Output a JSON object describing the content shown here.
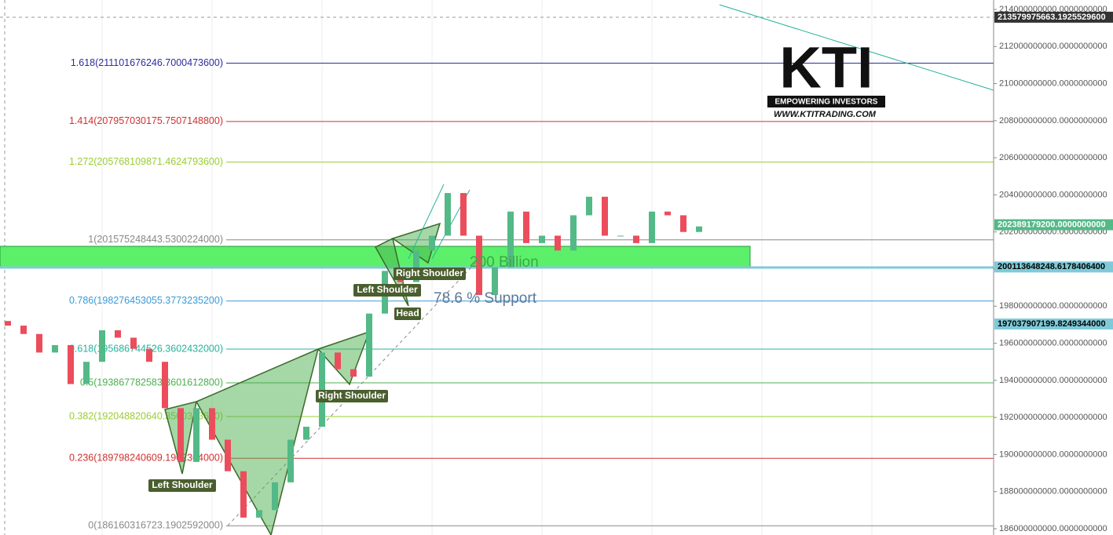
{
  "chart_data": {
    "type": "candlestick",
    "open": [
      197200000000.0,
      196950000000.0,
      196500000000.0,
      195500000000.0,
      195900000000.0,
      193800000000.0,
      195000000000.0,
      196700000000.0,
      196300000000.0,
      195700000000.0,
      195000000000.0,
      192500000000.0,
      189600000000.0,
      192500000000.0,
      190800000000.0,
      189100000000.0,
      186600000000.0,
      187000000000.0,
      188500000000.0,
      190800000000.0,
      191500000000.0,
      195500000000.0,
      194600000000.0,
      194200000000.0,
      197600000000.0,
      199900000000.0,
      199300000000.0,
      201000000000.0,
      201800000000.0,
      204100000000.0,
      201800000000.0,
      198600000000.0,
      200100000000.0,
      203100000000.0,
      201400000000.0,
      201800000000.0,
      201000000000.0,
      202900000000.0,
      203900000000.0,
      201800000000.0,
      201800000000.0,
      201400000000.0,
      203100000000.0,
      202900000000.0,
      202000000000.0
    ],
    "close": [
      196950000000.0,
      196500000000.0,
      195500000000.0,
      195900000000.0,
      193800000000.0,
      195000000000.0,
      196700000000.0,
      196300000000.0,
      195700000000.0,
      195000000000.0,
      192500000000.0,
      189600000000.0,
      192500000000.0,
      190800000000.0,
      189100000000.0,
      186600000000.0,
      187000000000.0,
      188500000000.0,
      190800000000.0,
      191500000000.0,
      195500000000.0,
      194600000000.0,
      194200000000.0,
      197600000000.0,
      199900000000.0,
      199300000000.0,
      201000000000.0,
      201800000000.0,
      204100000000.0,
      201800000000.0,
      198600000000.0,
      200100000000.0,
      203100000000.0,
      201400000000.0,
      201800000000.0,
      201000000000.0,
      202900000000.0,
      203900000000.0,
      201800000000.0,
      201800000000.0,
      201400000000.0,
      203100000000.0,
      202900000000.0,
      202000000000.0,
      202300000000.0
    ],
    "up_color": "#53b987",
    "down_color": "#eb4d5c",
    "ylim": [
      186000000000.0,
      214000000000.0
    ],
    "yticks": [
      {
        "value": 186000000000.0,
        "label": "186000000000.0000000000"
      },
      {
        "value": 188000000000.0,
        "label": "188000000000.0000000000"
      },
      {
        "value": 190000000000.0,
        "label": "190000000000.0000000000"
      },
      {
        "value": 192000000000.0,
        "label": "192000000000.0000000000"
      },
      {
        "value": 194000000000.0,
        "label": "194000000000.0000000000"
      },
      {
        "value": 196000000000.0,
        "label": "196000000000.0000000000"
      },
      {
        "value": 198000000000.0,
        "label": "198000000000.0000000000"
      },
      {
        "value": 200000000000.0,
        "label": "200000000000.0000000000"
      },
      {
        "value": 202000000000.0,
        "label": "202000000000.0000000000"
      },
      {
        "value": 204000000000.0,
        "label": "204000000000.0000000000"
      },
      {
        "value": 206000000000.0,
        "label": "206000000000.0000000000"
      },
      {
        "value": 208000000000.0,
        "label": "208000000000.0000000000"
      },
      {
        "value": 210000000000.0,
        "label": "210000000000.0000000000"
      },
      {
        "value": 212000000000.0,
        "label": "212000000000.0000000000"
      },
      {
        "value": 214000000000.0,
        "label": "214000000000.0000000000"
      }
    ],
    "fib_levels": [
      {
        "value": 211101676246.70004,
        "label": "1.618(211101676246.7000473600)",
        "color": "#2c2ca0"
      },
      {
        "value": 207957030175.75073,
        "label": "1.414(207957030175.7507148800)",
        "color": "#d03030"
      },
      {
        "value": 205768109871.4625,
        "label": "1.272(205768109871.4624793600)",
        "color": "#9acd32"
      },
      {
        "value": 201575248443.53003,
        "label": "1(201575248443.5300224000)",
        "color": "#888888"
      },
      {
        "value": 198276453055.37732,
        "label": "0.786(198276453055.3773235200)",
        "color": "#3a9ad9"
      },
      {
        "value": 195686744526.36023,
        "label": "0.618(195686744526.3602432000)",
        "color": "#27b39a"
      },
      {
        "value": 193867782583.36017,
        "label": "0.5(193867782583.3601612800)",
        "color": "#4caf50"
      },
      {
        "value": 192048820640.35004,
        "label": "0.382(192048820640.3500313600)",
        "color": "#9acd32"
      },
      {
        "value": 189798240609.19022,
        "label": "0.236(189798240609.1902304000)",
        "color": "#d03030"
      },
      {
        "value": 186160316723.19025,
        "label": "0(186160316723.1902592000)",
        "color": "#888888"
      }
    ],
    "price_badges": [
      {
        "value": 213579975663.19254,
        "label": "213579975663.1925529600",
        "color": "#333333"
      },
      {
        "value": 202389179200,
        "label": "202389179200.0000000000",
        "color": "#53b987"
      },
      {
        "value": 200113648248.61783,
        "label": "200113648248.6178406400",
        "color": "#7fcad8"
      },
      {
        "value": 197037907199.82492,
        "label": "197037907199.8249344000",
        "color": "#7fcad8"
      }
    ],
    "annotations": [
      "200 Billion",
      "78.6 % Support"
    ],
    "pattern_labels": [
      "Left Shoulder",
      "Right Shoulder",
      "Left Shoulder",
      "Right Shoulder",
      "Head"
    ],
    "logo": {
      "brand": "KTI",
      "tagline": "EMPOWERING INVESTORS",
      "url": "WWW.KTITRADING.COM"
    }
  }
}
